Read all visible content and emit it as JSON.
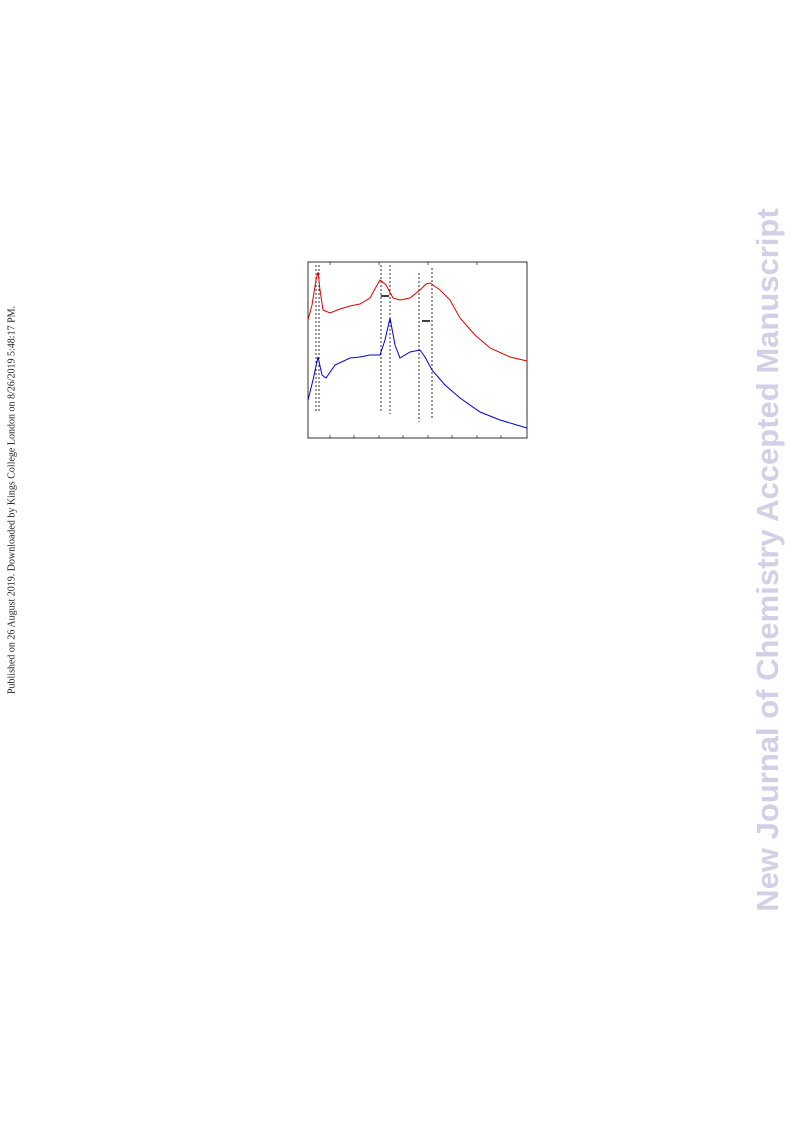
{
  "side_note": {
    "text": "Published on 26 August 2019. Downloaded by Kings College London on 8/26/2019 5:48:17 PM."
  },
  "watermark": {
    "text": "New Journal of Chemistry Accepted Manuscript"
  }
}
